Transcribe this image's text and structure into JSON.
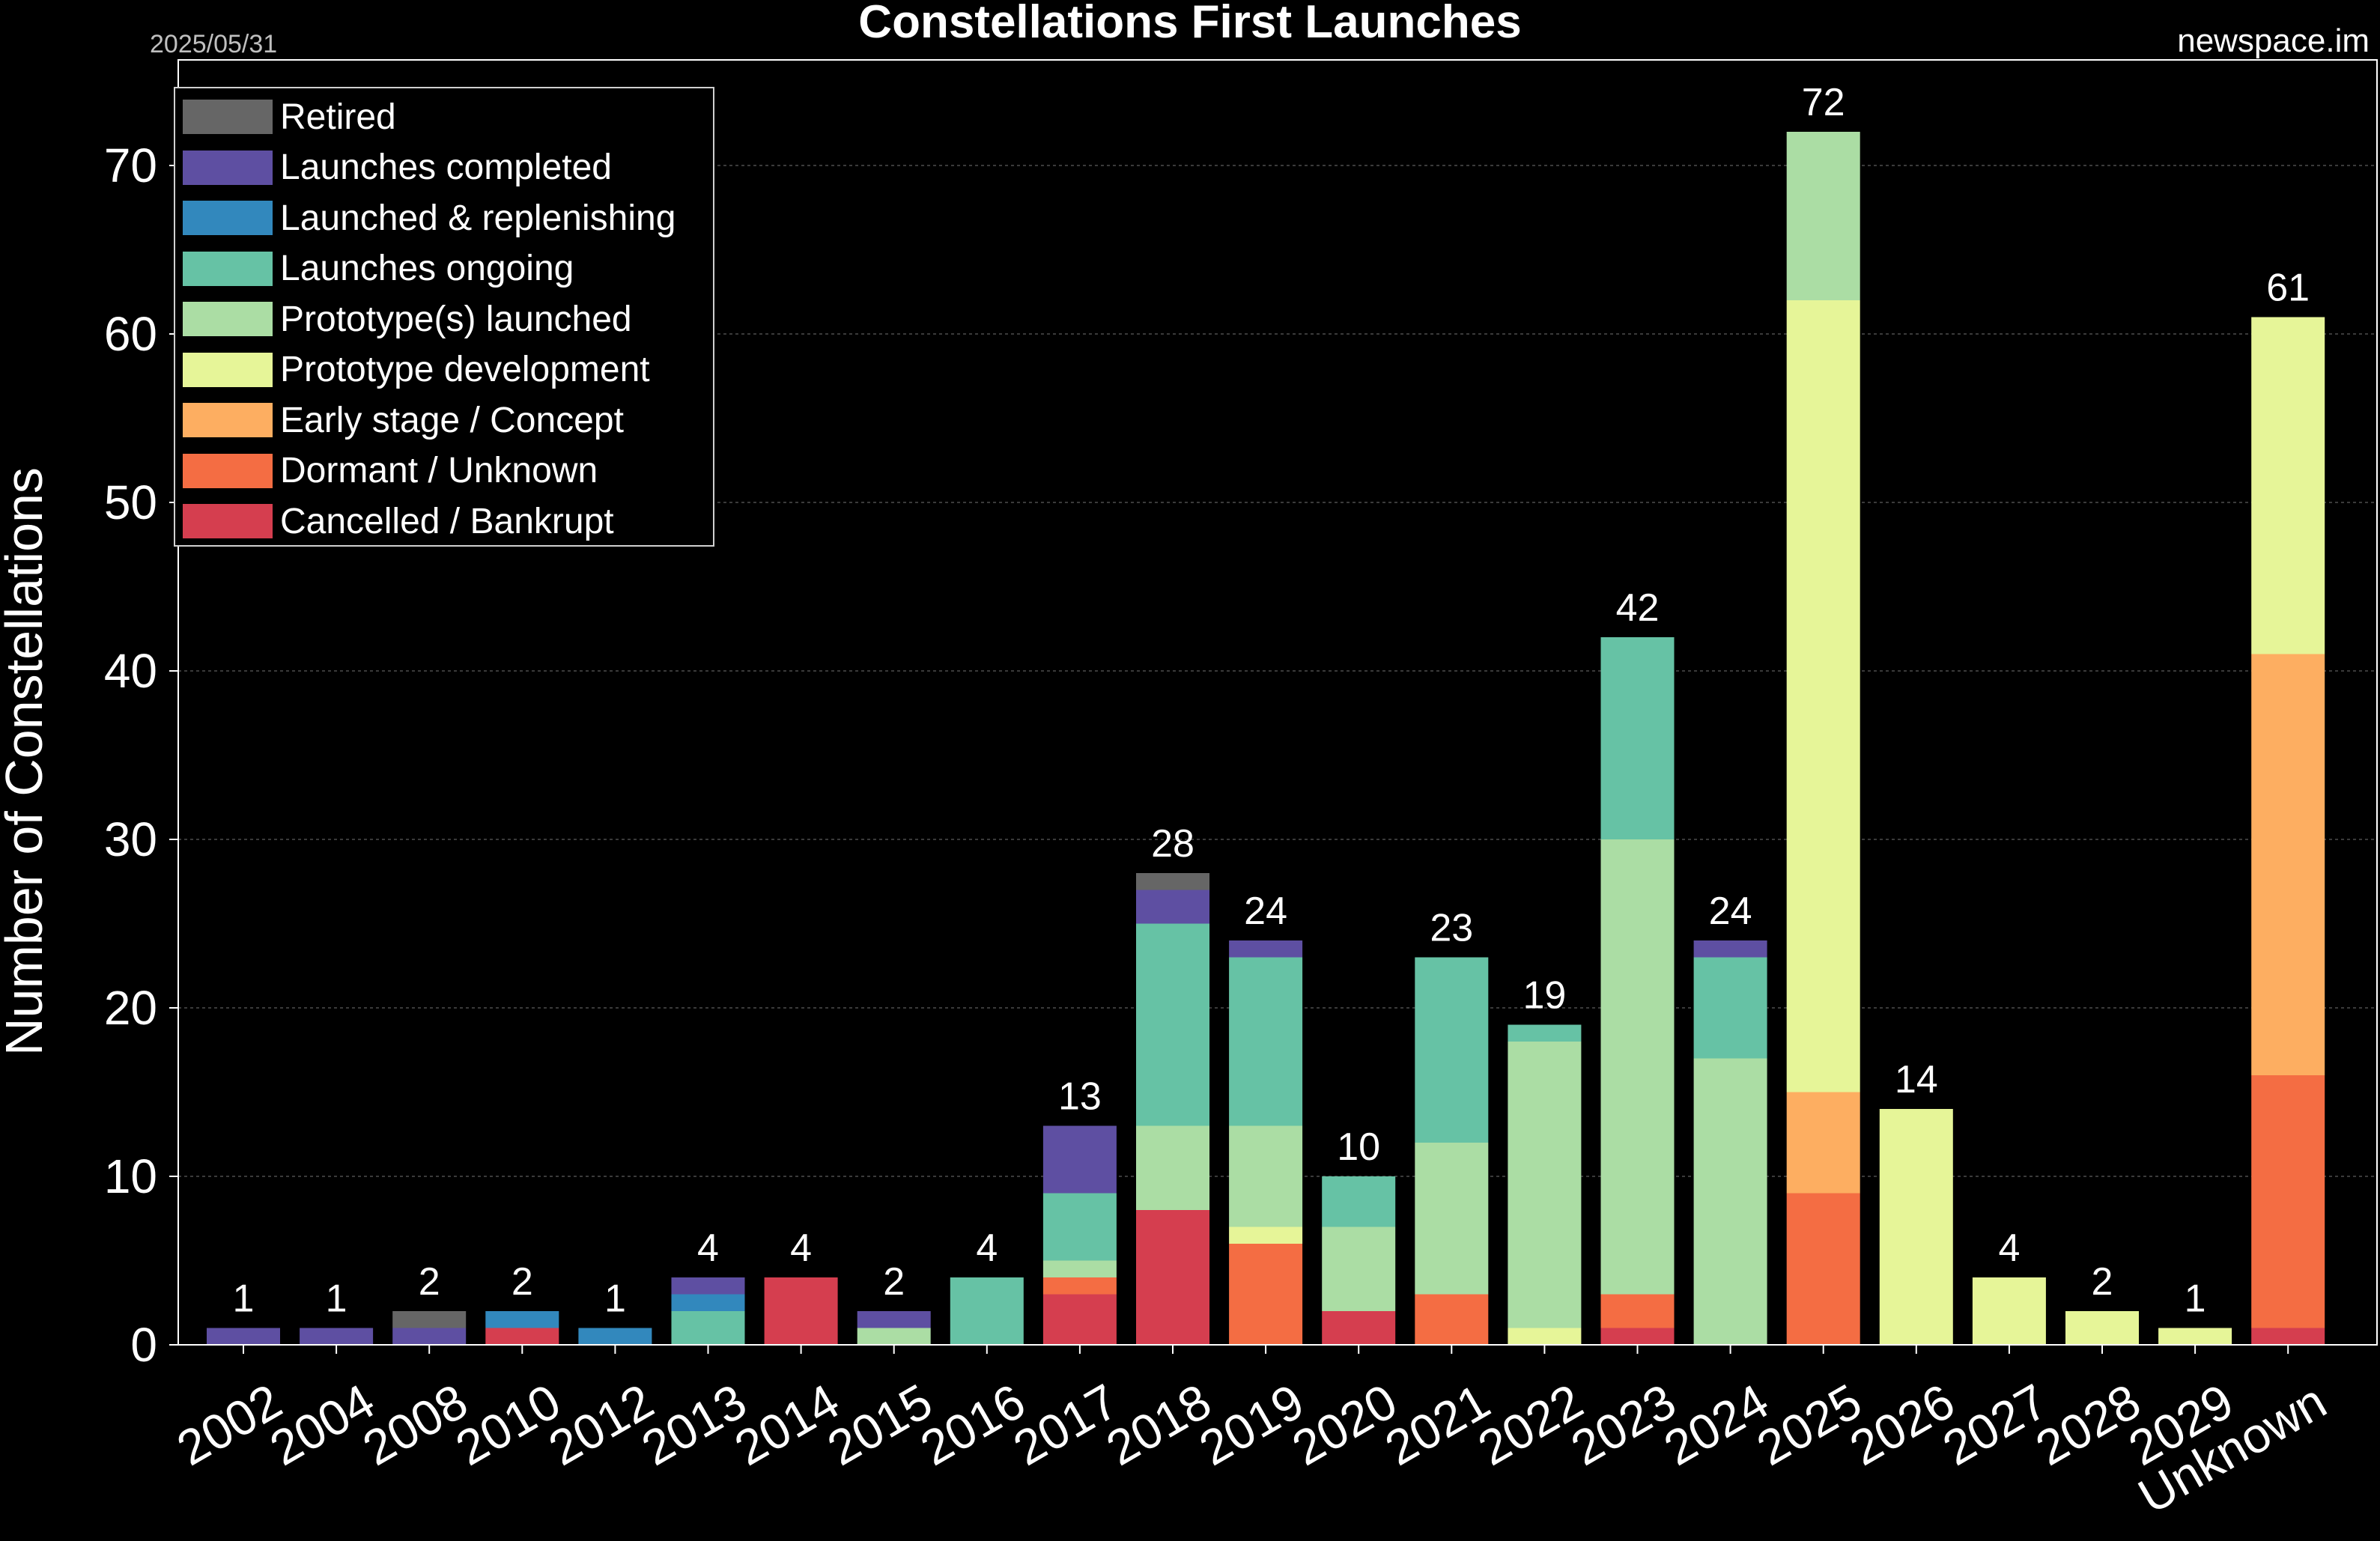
{
  "header": {
    "title": "Constellations First Launches",
    "date": "2025/05/31",
    "source": "newspace.im"
  },
  "chart_data": {
    "type": "bar",
    "stacked": true,
    "title": "Constellations First Launches",
    "xlabel": "",
    "ylabel": "Number of Constellations",
    "ylim": [
      0,
      76
    ],
    "yticks": [
      0,
      10,
      20,
      30,
      40,
      50,
      60,
      70
    ],
    "grid": true,
    "legend_position": "top-left",
    "categories": [
      "2002",
      "2004",
      "2008",
      "2010",
      "2012",
      "2013",
      "2014",
      "2015",
      "2016",
      "2017",
      "2018",
      "2019",
      "2020",
      "2021",
      "2022",
      "2023",
      "2024",
      "2025",
      "2026",
      "2027",
      "2028",
      "2029",
      "Unknown"
    ],
    "series": [
      {
        "name": "Cancelled / Bankrupt",
        "color": "#d53e4f",
        "values": [
          0,
          0,
          0,
          1,
          0,
          0,
          4,
          0,
          0,
          3,
          8,
          0,
          2,
          0,
          0,
          1,
          0,
          0,
          0,
          0,
          0,
          0,
          1
        ]
      },
      {
        "name": "Dormant / Unknown",
        "color": "#f46d43",
        "values": [
          0,
          0,
          0,
          0,
          0,
          0,
          0,
          0,
          0,
          1,
          0,
          6,
          0,
          3,
          0,
          2,
          0,
          9,
          0,
          0,
          0,
          0,
          15
        ]
      },
      {
        "name": "Early stage / Concept",
        "color": "#fdae61",
        "values": [
          0,
          0,
          0,
          0,
          0,
          0,
          0,
          0,
          0,
          0,
          0,
          0,
          0,
          0,
          0,
          0,
          0,
          6,
          0,
          0,
          0,
          0,
          25
        ]
      },
      {
        "name": "Prototype development",
        "color": "#e6f598",
        "values": [
          0,
          0,
          0,
          0,
          0,
          0,
          0,
          0,
          0,
          0,
          0,
          1,
          0,
          0,
          1,
          0,
          0,
          47,
          14,
          4,
          2,
          1,
          20
        ]
      },
      {
        "name": "Prototype(s) launched",
        "color": "#abdda4",
        "values": [
          0,
          0,
          0,
          0,
          0,
          0,
          0,
          1,
          0,
          1,
          5,
          6,
          5,
          9,
          17,
          27,
          17,
          10,
          0,
          0,
          0,
          0,
          0
        ]
      },
      {
        "name": "Launches ongoing",
        "color": "#66c2a5",
        "values": [
          0,
          0,
          0,
          0,
          0,
          2,
          0,
          0,
          4,
          4,
          12,
          10,
          3,
          11,
          1,
          12,
          6,
          0,
          0,
          0,
          0,
          0,
          0
        ]
      },
      {
        "name": "Launched & replenishing",
        "color": "#3288bd",
        "values": [
          0,
          0,
          0,
          1,
          1,
          1,
          0,
          0,
          0,
          0,
          0,
          0,
          0,
          0,
          0,
          0,
          0,
          0,
          0,
          0,
          0,
          0,
          0
        ]
      },
      {
        "name": "Launches completed",
        "color": "#5e4fa2",
        "values": [
          1,
          1,
          1,
          0,
          0,
          1,
          0,
          1,
          0,
          4,
          2,
          1,
          0,
          0,
          0,
          0,
          1,
          0,
          0,
          0,
          0,
          0,
          0
        ]
      },
      {
        "name": "Retired",
        "color": "#666666",
        "values": [
          0,
          0,
          1,
          0,
          0,
          0,
          0,
          0,
          0,
          0,
          1,
          0,
          0,
          0,
          0,
          0,
          0,
          0,
          0,
          0,
          0,
          0,
          0
        ]
      }
    ],
    "totals": [
      1,
      1,
      2,
      2,
      1,
      4,
      4,
      2,
      4,
      13,
      28,
      24,
      10,
      23,
      19,
      42,
      24,
      72,
      14,
      4,
      2,
      1,
      61
    ],
    "legend_order": [
      "Retired",
      "Launches completed",
      "Launched & replenishing",
      "Launches ongoing",
      "Prototype(s) launched",
      "Prototype development",
      "Early stage / Concept",
      "Dormant / Unknown",
      "Cancelled / Bankrupt"
    ]
  }
}
